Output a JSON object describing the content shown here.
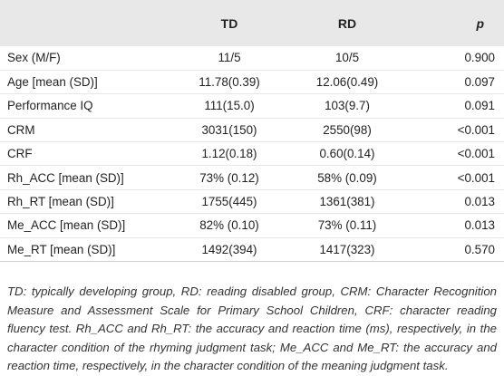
{
  "table": {
    "headers": {
      "label": "",
      "td": "TD",
      "rd": "RD",
      "p": "p"
    },
    "rows": [
      {
        "label": "Sex (M/F)",
        "td": "11/5",
        "rd": "10/5",
        "p": "0.900"
      },
      {
        "label": "Age [mean (SD)]",
        "td": "11.78(0.39)",
        "rd": "12.06(0.49)",
        "p": "0.097"
      },
      {
        "label": "Performance IQ",
        "td": "111(15.0)",
        "rd": "103(9.7)",
        "p": "0.091"
      },
      {
        "label": "CRM",
        "td": "3031(150)",
        "rd": "2550(98)",
        "p": "<0.001"
      },
      {
        "label": "CRF",
        "td": "1.12(0.18)",
        "rd": "0.60(0.14)",
        "p": "<0.001"
      },
      {
        "label": "Rh_ACC [mean (SD)]",
        "td": "73% (0.12)",
        "rd": "58% (0.09)",
        "p": "<0.001"
      },
      {
        "label": "Rh_RT [mean (SD)]",
        "td": "1755(445)",
        "rd": "1361(381)",
        "p": "0.013"
      },
      {
        "label": "Me_ACC [mean (SD)]",
        "td": "82% (0.10)",
        "rd": "73% (0.11)",
        "p": "0.013"
      },
      {
        "label": "Me_RT [mean (SD)]",
        "td": "1492(394)",
        "rd": "1417(323)",
        "p": "0.570"
      }
    ]
  },
  "footnote": "TD: typically developing group, RD: reading disabled group, CRM: Character Recognition Measure and Assessment Scale for Primary School Children, CRF: character reading fluency test. Rh_ACC and Rh_RT: the accuracy and reaction time (ms), respectively, in the character condition of the rhyming judgment task; Me_ACC and Me_RT: the accuracy and reaction time, respectively, in the character condition of the meaning judgment task."
}
